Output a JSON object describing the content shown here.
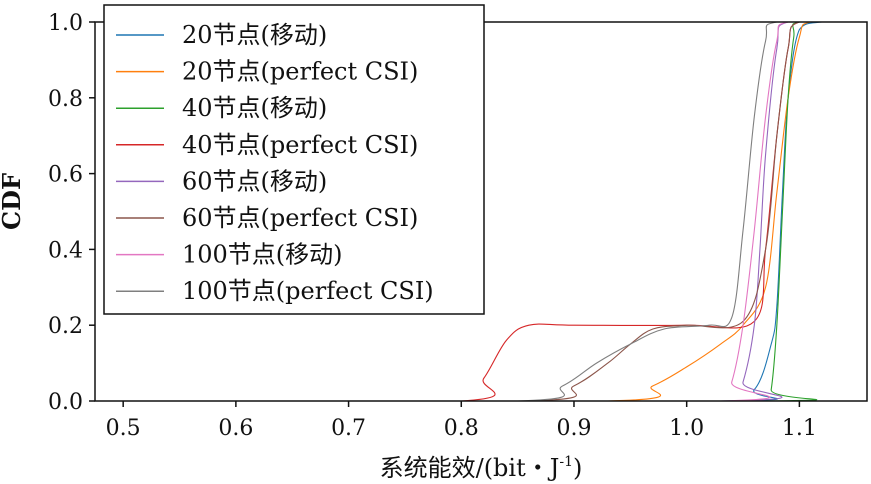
{
  "chart_data": {
    "type": "line",
    "title": "",
    "xlabel": "系统能效/(bit・J",
    "xlabel_sup": "-1",
    "xlabel_tail": ")",
    "ylabel": "CDF",
    "xlim": [
      0.475,
      1.16
    ],
    "ylim": [
      0.0,
      1.0
    ],
    "x_ticks": [
      0.5,
      0.6,
      0.7,
      0.8,
      0.9,
      1.0,
      1.1
    ],
    "x_tick_labels": [
      "0.5",
      "0.6",
      "0.7",
      "0.8",
      "0.9",
      "1.0",
      "1.1"
    ],
    "y_ticks": [
      0.0,
      0.2,
      0.4,
      0.6,
      0.8,
      1.0
    ],
    "y_tick_labels": [
      "0.0",
      "0.2",
      "0.4",
      "0.6",
      "0.8",
      "1.0"
    ],
    "grid": false,
    "legend_position": "top-left",
    "series": [
      {
        "name": "20节点(移动)",
        "color": "#1f77b4",
        "x": [
          1.03,
          1.06,
          1.075,
          1.08,
          1.085,
          1.09,
          1.1,
          1.12
        ],
        "y": [
          0.0,
          0.03,
          0.15,
          0.25,
          0.55,
          0.8,
          0.98,
          1.0
        ]
      },
      {
        "name": "20节点(perfect CSI)",
        "color": "#ff7f0e",
        "x": [
          0.93,
          0.97,
          1.0,
          1.03,
          1.05,
          1.07,
          1.08,
          1.09,
          1.1,
          1.11
        ],
        "y": [
          0.0,
          0.04,
          0.09,
          0.15,
          0.2,
          0.3,
          0.55,
          0.8,
          0.96,
          1.0
        ]
      },
      {
        "name": "40节点(移动)",
        "color": "#2ca02c",
        "x": [
          1.07,
          1.075,
          1.08,
          1.085,
          1.09,
          1.095,
          1.1
        ],
        "y": [
          0.0,
          0.03,
          0.2,
          0.5,
          0.8,
          0.96,
          1.0
        ]
      },
      {
        "name": "40节点(perfect CSI)",
        "color": "#d62728",
        "x": [
          0.8,
          0.82,
          0.84,
          0.86,
          0.9,
          1.0,
          1.06,
          1.07,
          1.08,
          1.09,
          1.1
        ],
        "y": [
          0.0,
          0.06,
          0.16,
          0.2,
          0.2,
          0.2,
          0.21,
          0.4,
          0.7,
          0.93,
          1.0
        ]
      },
      {
        "name": "60节点(移动)",
        "color": "#9467bd",
        "x": [
          1.04,
          1.05,
          1.06,
          1.065,
          1.07,
          1.08,
          1.09
        ],
        "y": [
          0.0,
          0.05,
          0.2,
          0.4,
          0.65,
          0.93,
          1.0
        ]
      },
      {
        "name": "60节点(perfect CSI)",
        "color": "#8c564b",
        "x": [
          0.86,
          0.9,
          0.93,
          0.95,
          0.97,
          1.0,
          1.05,
          1.07,
          1.08,
          1.09,
          1.1
        ],
        "y": [
          0.0,
          0.04,
          0.1,
          0.15,
          0.19,
          0.2,
          0.21,
          0.4,
          0.7,
          0.93,
          1.0
        ]
      },
      {
        "name": "100节点(移动)",
        "color": "#e377c2",
        "x": [
          1.03,
          1.04,
          1.05,
          1.06,
          1.07,
          1.08,
          1.09
        ],
        "y": [
          0.0,
          0.05,
          0.2,
          0.45,
          0.75,
          0.95,
          1.0
        ]
      },
      {
        "name": "100节点(perfect CSI)",
        "color": "#7f7f7f",
        "x": [
          0.85,
          0.89,
          0.92,
          0.95,
          0.98,
          1.02,
          1.04,
          1.05,
          1.06,
          1.07,
          1.08
        ],
        "y": [
          0.0,
          0.04,
          0.1,
          0.15,
          0.19,
          0.2,
          0.22,
          0.45,
          0.75,
          0.95,
          1.0
        ]
      }
    ]
  }
}
